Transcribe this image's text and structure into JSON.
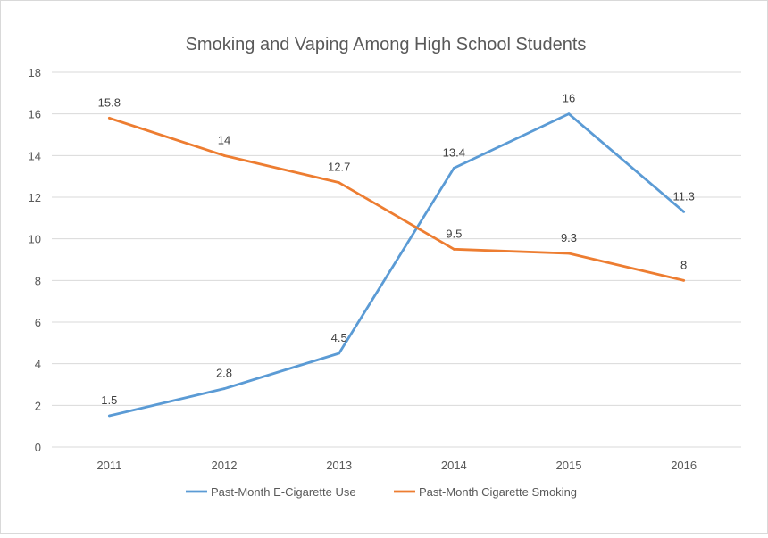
{
  "chart_data": {
    "type": "line",
    "title": "Smoking and Vaping Among High School Students",
    "xlabel": "",
    "ylabel": "",
    "categories": [
      "2011",
      "2012",
      "2013",
      "2014",
      "2015",
      "2016"
    ],
    "ylim": [
      0,
      18
    ],
    "yticks": [
      "0",
      "2",
      "4",
      "6",
      "8",
      "10",
      "12",
      "14",
      "16",
      "18"
    ],
    "grid": true,
    "legend": "bottom",
    "series": [
      {
        "name": "Past-Month E-Cigarette Use",
        "color": "#5B9BD5",
        "values": [
          1.5,
          2.8,
          4.5,
          13.4,
          16,
          11.3
        ],
        "labels": [
          "1.5",
          "2.8",
          "4.5",
          "13.4",
          "16",
          "11.3"
        ]
      },
      {
        "name": "Past-Month Cigarette Smoking",
        "color": "#ED7D31",
        "values": [
          15.8,
          14,
          12.7,
          9.5,
          9.3,
          8
        ],
        "labels": [
          "15.8",
          "14",
          "12.7",
          "9.5",
          "9.3",
          "8"
        ]
      }
    ]
  }
}
